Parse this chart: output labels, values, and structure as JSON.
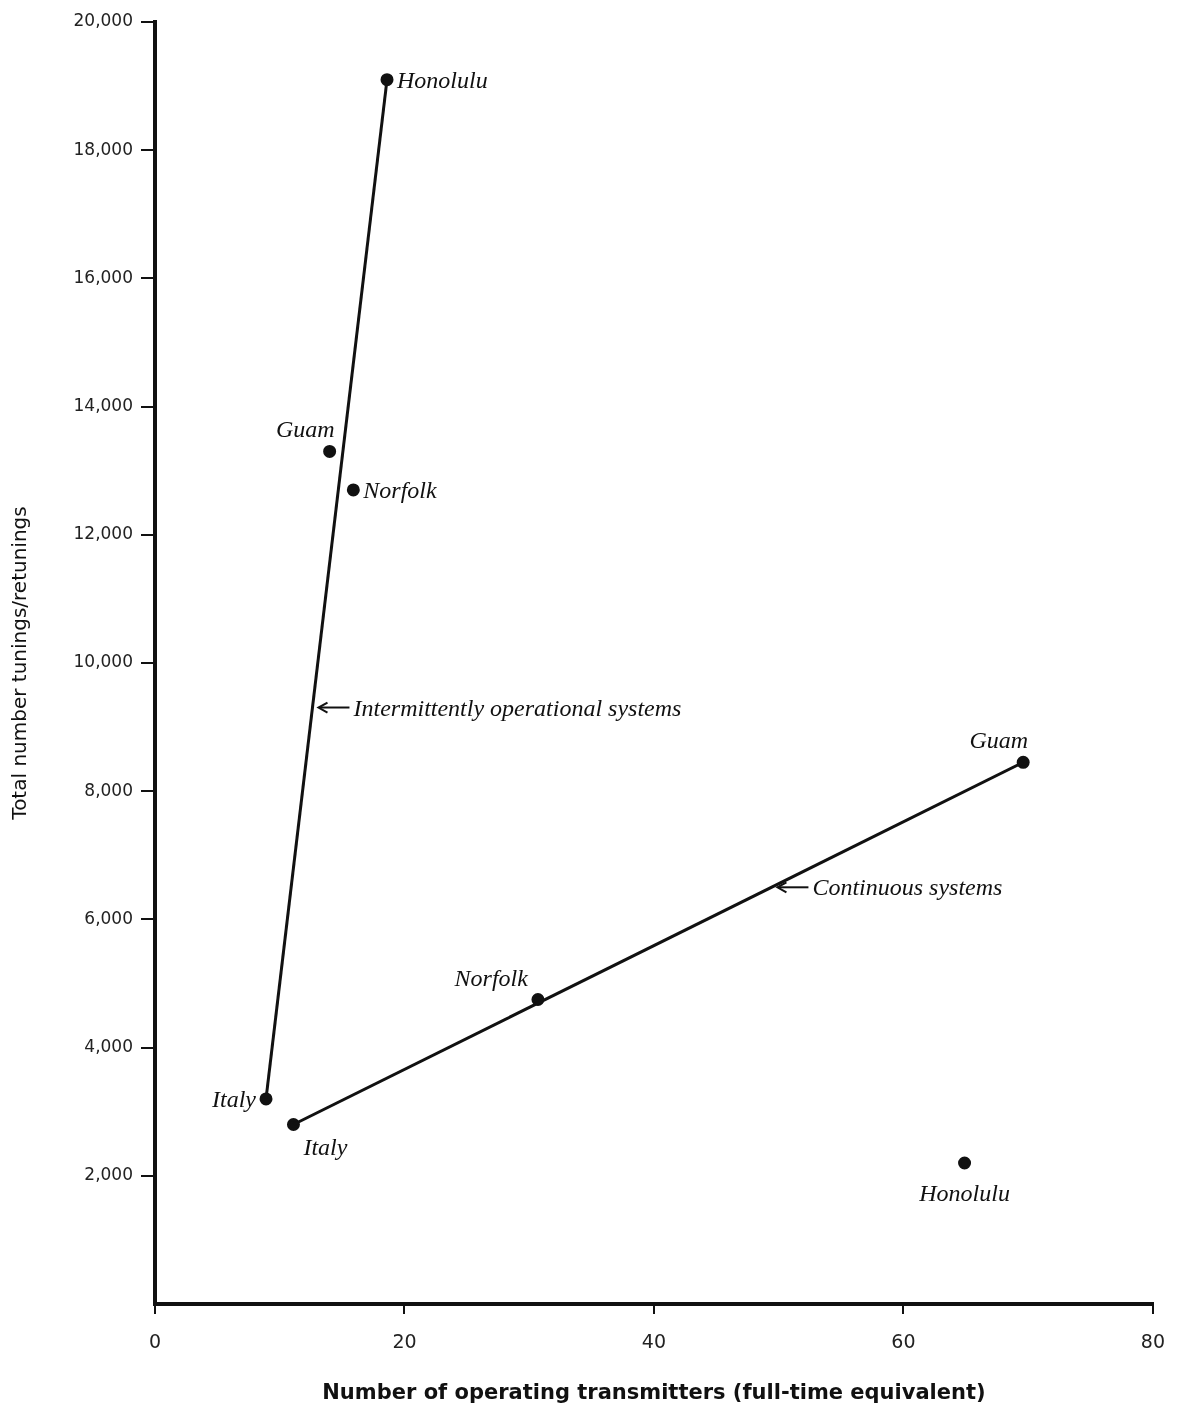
{
  "chart_data": {
    "type": "scatter",
    "xlabel": "Number of operating transmitters (full-time equivalent)",
    "ylabel": "Total number tunings/retunings",
    "xlim": [
      0,
      80
    ],
    "xticks": [
      0,
      20,
      40,
      60,
      80
    ],
    "ylim": [
      0,
      20000
    ],
    "yticks": [
      {
        "value": 2000,
        "label": "2,000"
      },
      {
        "value": 4000,
        "label": "4,000"
      },
      {
        "value": 6000,
        "label": "6,000"
      },
      {
        "value": 8000,
        "label": "8,000"
      },
      {
        "value": 10000,
        "label": "10,000"
      },
      {
        "value": 12000,
        "label": "12,000"
      },
      {
        "value": 14000,
        "label": "14,000"
      },
      {
        "value": 16000,
        "label": "16,000"
      },
      {
        "value": 18000,
        "label": "18,000"
      },
      {
        "value": 20000,
        "label": "20,000"
      }
    ],
    "series": [
      {
        "type": "line",
        "x": [
          8.9,
          18.6
        ],
        "values": [
          3200,
          19100
        ],
        "color": "#111111",
        "marker": "none"
      },
      {
        "type": "line",
        "x": [
          11.1,
          69.6
        ],
        "values": [
          2800,
          8450
        ],
        "color": "#111111",
        "marker": "none"
      },
      {
        "type": "scatter",
        "x": [
          18.6,
          14.0,
          15.9,
          8.9
        ],
        "values": [
          19100,
          13300,
          12700,
          3200
        ],
        "color": "#111111",
        "marker": "circle"
      },
      {
        "type": "scatter",
        "x": [
          69.6,
          30.7,
          11.1,
          64.9
        ],
        "values": [
          8450,
          4750,
          2800,
          2200
        ],
        "color": "#111111",
        "marker": "circle"
      }
    ],
    "annotations": [
      {
        "text": "Honolulu",
        "x": 18.6,
        "y": 19100
      },
      {
        "text": "Guam",
        "x": 14.0,
        "y": 13300
      },
      {
        "text": "Norfolk",
        "x": 15.9,
        "y": 12700
      },
      {
        "text": "Italy",
        "x": 8.9,
        "y": 3200
      },
      {
        "text": "Guam",
        "x": 69.6,
        "y": 8450
      },
      {
        "text": "Norfolk",
        "x": 30.7,
        "y": 4750
      },
      {
        "text": "Italy",
        "x": 11.1,
        "y": 2800
      },
      {
        "text": "Honolulu",
        "x": 64.9,
        "y": 2200
      },
      "Intermittently operational systems",
      "Continuous systems"
    ],
    "legend": false
  }
}
